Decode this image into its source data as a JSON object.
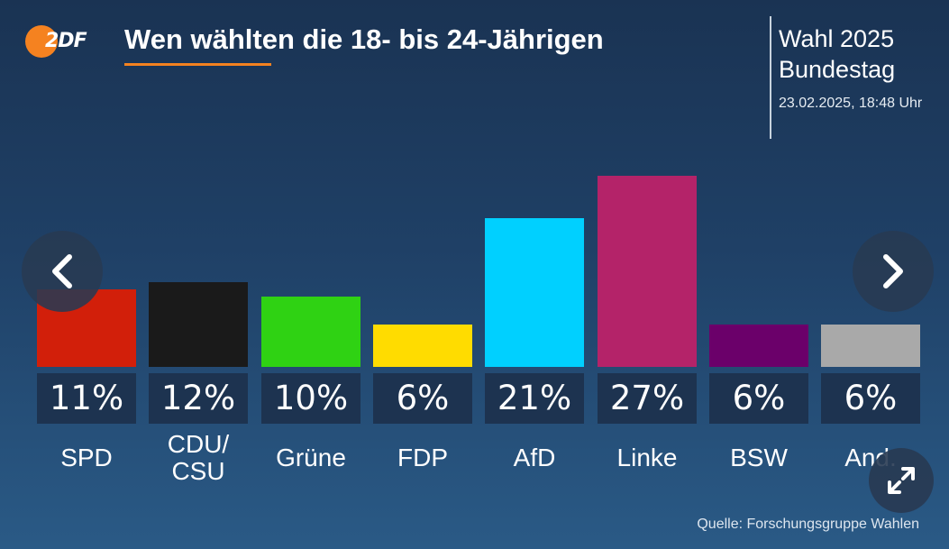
{
  "logo": {
    "text": "2DF"
  },
  "header": {
    "title": "Wen wählten die 18- bis 24-Jährigen",
    "election_line1": "Wahl 2025",
    "election_line2": "Bundestag",
    "timestamp": "23.02.2025, 18:48 Uhr"
  },
  "colors": {
    "accent": "#f58220",
    "value_box": "#1d3350"
  },
  "icons": {
    "prev": "chevron-left-icon",
    "next": "chevron-right-icon",
    "expand": "expand-icon"
  },
  "chart_data": {
    "type": "bar",
    "categories": [
      "SPD",
      "CDU/\nCSU",
      "Grüne",
      "FDP",
      "AfD",
      "Linke",
      "BSW",
      "And."
    ],
    "values": [
      11,
      12,
      10,
      6,
      21,
      27,
      6,
      6
    ],
    "value_labels": [
      "11%",
      "12%",
      "10%",
      "6%",
      "21%",
      "27%",
      "6%",
      "6%"
    ],
    "colors": [
      "#d21f0a",
      "#1a1a1a",
      "#2fd213",
      "#ffdc00",
      "#00d0ff",
      "#b42369",
      "#6b006a",
      "#a9a9a9"
    ],
    "title": "Wen wählten die 18- bis 24-Jährigen",
    "xlabel": "",
    "ylabel": "",
    "grid": false
  },
  "footer": {
    "source": "Quelle: Forschungsgruppe Wahlen"
  }
}
